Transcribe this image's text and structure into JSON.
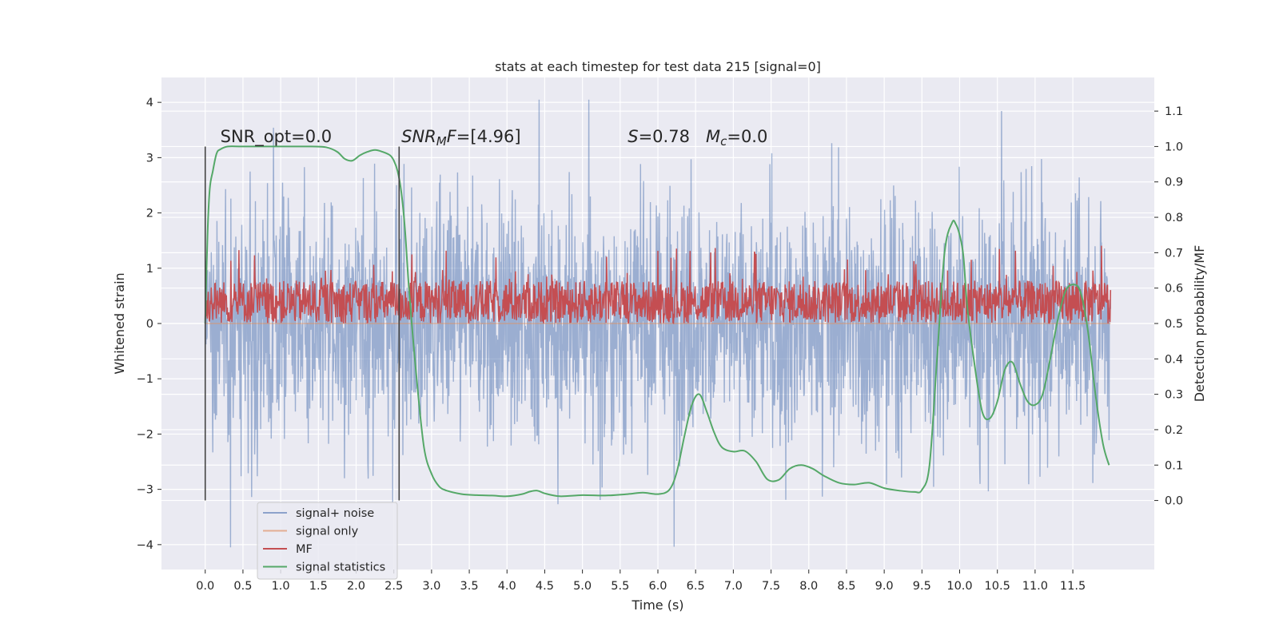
{
  "chart_data": {
    "type": "line",
    "title": "stats at each timestep for test data 215 [signal=0]",
    "xlabel": "Time (s)",
    "ylabel": "Whitened strain",
    "y2label": "Detection probability/MF",
    "xlim": [
      -0.58,
      12.58
    ],
    "ylim": [
      -4.45,
      4.45
    ],
    "y2lim": [
      -0.195,
      1.195
    ],
    "xticks": [
      "0.0",
      "0.5",
      "1.0",
      "1.5",
      "2.0",
      "2.5",
      "3.0",
      "3.5",
      "4.0",
      "4.5",
      "5.0",
      "5.5",
      "6.0",
      "6.5",
      "7.0",
      "7.5",
      "8.0",
      "8.5",
      "9.0",
      "9.5",
      "10.0",
      "10.5",
      "11.0",
      "11.5"
    ],
    "yticks": [
      4,
      3,
      2,
      1,
      0,
      -1,
      -2,
      -3,
      -4
    ],
    "ytick_labels": [
      "4",
      "3",
      "2",
      "1",
      "0",
      "−1",
      "−2",
      "−3",
      "−4"
    ],
    "y2ticks": [
      1.1,
      1.0,
      0.9,
      0.8,
      0.7,
      0.6,
      0.5,
      0.4,
      0.3,
      0.2,
      0.1,
      0.0
    ],
    "y2tick_labels": [
      "1.1",
      "1.0",
      "0.9",
      "0.8",
      "0.7",
      "0.6",
      "0.5",
      "0.4",
      "0.3",
      "0.2",
      "0.1",
      "0.0"
    ],
    "grid": true,
    "legend_position": "lower-left",
    "colors": {
      "signal_noise": "#4c72b0",
      "signal_only": "#dd8452",
      "mf": "#c44e52",
      "statistics": "#55a868",
      "background": "#eaeaf2",
      "grid": "#ffffff",
      "text": "#262626"
    },
    "series": [
      {
        "name": "signal+ noise",
        "axis": "left",
        "style": "noise",
        "x_range": [
          0.0,
          12.0
        ],
        "approx_envelope": [
          -3.4,
          3.4
        ]
      },
      {
        "name": "signal only",
        "axis": "left",
        "style": "flat",
        "x_range": [
          0.0,
          12.0
        ],
        "values": [
          0
        ]
      },
      {
        "name": "MF",
        "axis": "right",
        "style": "noise",
        "x_range": [
          0.0,
          12.0
        ],
        "approx_range": [
          0.5,
          0.72
        ]
      },
      {
        "name": "signal statistics",
        "axis": "right",
        "style": "line",
        "x": [
          0.0,
          0.03,
          0.06,
          0.1,
          0.15,
          0.2,
          0.3,
          0.5,
          1.0,
          1.4,
          1.6,
          1.75,
          1.85,
          1.95,
          2.05,
          2.15,
          2.25,
          2.35,
          2.45,
          2.5,
          2.55,
          2.6,
          2.65,
          2.7,
          2.8,
          2.9,
          3.0,
          3.1,
          3.2,
          3.4,
          3.6,
          3.8,
          4.0,
          4.2,
          4.3,
          4.4,
          4.5,
          4.7,
          5.0,
          5.3,
          5.6,
          5.8,
          6.0,
          6.15,
          6.25,
          6.35,
          6.45,
          6.55,
          6.65,
          6.75,
          6.85,
          7.0,
          7.15,
          7.3,
          7.45,
          7.6,
          7.75,
          7.9,
          8.05,
          8.2,
          8.4,
          8.6,
          8.8,
          9.0,
          9.2,
          9.4,
          9.5,
          9.6,
          9.7,
          9.8,
          9.9,
          9.95,
          10.0,
          10.05,
          10.1,
          10.2,
          10.3,
          10.4,
          10.5,
          10.6,
          10.7,
          10.8,
          10.9,
          11.0,
          11.1,
          11.2,
          11.3,
          11.4,
          11.5,
          11.6,
          11.7,
          11.8,
          11.9,
          11.98
        ],
        "values": [
          0.5,
          0.75,
          0.88,
          0.93,
          0.98,
          0.992,
          1.0,
          1.0,
          1.0,
          1.0,
          0.998,
          0.985,
          0.965,
          0.96,
          0.975,
          0.985,
          0.99,
          0.985,
          0.975,
          0.96,
          0.93,
          0.87,
          0.76,
          0.6,
          0.35,
          0.15,
          0.075,
          0.04,
          0.028,
          0.018,
          0.015,
          0.014,
          0.012,
          0.018,
          0.025,
          0.028,
          0.02,
          0.012,
          0.015,
          0.014,
          0.018,
          0.022,
          0.018,
          0.03,
          0.08,
          0.18,
          0.27,
          0.3,
          0.25,
          0.19,
          0.15,
          0.138,
          0.14,
          0.11,
          0.06,
          0.058,
          0.09,
          0.1,
          0.09,
          0.07,
          0.05,
          0.045,
          0.05,
          0.035,
          0.028,
          0.024,
          0.03,
          0.1,
          0.4,
          0.7,
          0.785,
          0.78,
          0.75,
          0.69,
          0.55,
          0.38,
          0.25,
          0.232,
          0.28,
          0.37,
          0.39,
          0.33,
          0.28,
          0.27,
          0.3,
          0.4,
          0.51,
          0.59,
          0.61,
          0.59,
          0.48,
          0.3,
          0.16,
          0.1
        ]
      }
    ],
    "vertical_markers": [
      {
        "x": 0.0,
        "ymin": -3.2,
        "ymax": 3.2
      },
      {
        "x": 2.57,
        "ymin": -3.2,
        "ymax": 3.2
      }
    ],
    "annotations": [
      {
        "id": "snr_opt",
        "x": 0.2,
        "y": 3.28,
        "parts": [
          {
            "t": "SNR_opt=0.0",
            "i": false
          }
        ]
      },
      {
        "id": "snr_mf",
        "x": 2.6,
        "y": 3.28,
        "parts": [
          {
            "t": "SNR",
            "i": true
          },
          {
            "t": "M",
            "i": true,
            "sub": true
          },
          {
            "t": "F",
            "i": true
          },
          {
            "t": "=[4.96]",
            "i": false
          }
        ]
      },
      {
        "id": "s_mc",
        "x": 5.6,
        "y": 3.28,
        "parts": [
          {
            "t": "S",
            "i": true
          },
          {
            "t": "=0.78   ",
            "i": false
          },
          {
            "t": "M",
            "i": true
          },
          {
            "t": "c",
            "i": true,
            "sub": true
          },
          {
            "t": "=0.0",
            "i": false
          }
        ]
      }
    ]
  }
}
